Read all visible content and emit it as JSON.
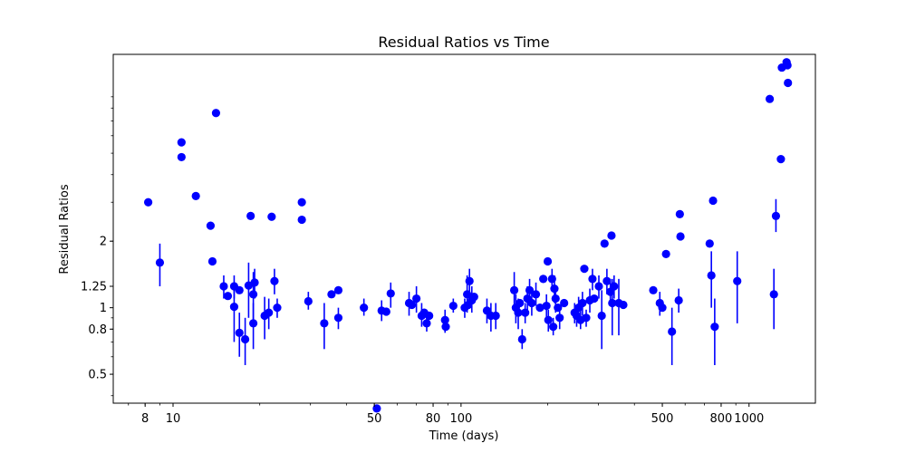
{
  "chart_data": {
    "type": "scatter",
    "title": "Residual Ratios vs Time",
    "xlabel": "Time (days)",
    "ylabel": "Residual Ratios",
    "xscale": "log",
    "yscale": "log",
    "xlim": [
      6.2,
      1700
    ],
    "ylim": [
      0.37,
      14
    ],
    "xticks": [
      {
        "value": 8,
        "label": "8"
      },
      {
        "value": 10,
        "label": "10"
      },
      {
        "value": 50,
        "label": "50"
      },
      {
        "value": 80,
        "label": "80"
      },
      {
        "value": 100,
        "label": "100"
      },
      {
        "value": 500,
        "label": "500"
      },
      {
        "value": 800,
        "label": "800"
      },
      {
        "value": 1000,
        "label": "1000"
      }
    ],
    "yticks": [
      {
        "value": 0.5,
        "label": "0.5"
      },
      {
        "value": 0.8,
        "label": "0.8"
      },
      {
        "value": 1,
        "label": "1"
      },
      {
        "value": 1.25,
        "label": "1.25"
      },
      {
        "value": 2,
        "label": "2"
      }
    ],
    "grid": false,
    "marker_color": "#0000ff",
    "points": [
      {
        "x": 8.2,
        "y": 3.0
      },
      {
        "x": 9.0,
        "y": 1.6,
        "lo": 1.25,
        "hi": 1.95
      },
      {
        "x": 10.7,
        "y": 5.6
      },
      {
        "x": 10.7,
        "y": 4.8
      },
      {
        "x": 12.0,
        "y": 3.2
      },
      {
        "x": 13.5,
        "y": 2.35
      },
      {
        "x": 13.7,
        "y": 1.62
      },
      {
        "x": 14.1,
        "y": 7.6
      },
      {
        "x": 15.0,
        "y": 1.25,
        "lo": 1.1,
        "hi": 1.4
      },
      {
        "x": 15.5,
        "y": 1.13
      },
      {
        "x": 16.3,
        "y": 1.25,
        "lo": 1.1,
        "hi": 1.4
      },
      {
        "x": 16.3,
        "y": 1.01,
        "lo": 0.7,
        "hi": 1.3
      },
      {
        "x": 17.0,
        "y": 0.77,
        "lo": 0.6,
        "hi": 0.95
      },
      {
        "x": 17.0,
        "y": 1.2
      },
      {
        "x": 17.8,
        "y": 0.72,
        "lo": 0.55,
        "hi": 0.9
      },
      {
        "x": 18.3,
        "y": 1.26,
        "lo": 0.9,
        "hi": 1.6
      },
      {
        "x": 18.6,
        "y": 2.6
      },
      {
        "x": 19.0,
        "y": 0.85,
        "lo": 0.65,
        "hi": 1.05
      },
      {
        "x": 19.0,
        "y": 1.15,
        "lo": 0.85,
        "hi": 1.45
      },
      {
        "x": 19.2,
        "y": 1.3,
        "lo": 1.1,
        "hi": 1.5
      },
      {
        "x": 20.8,
        "y": 0.92,
        "lo": 0.72,
        "hi": 1.12
      },
      {
        "x": 21.5,
        "y": 0.95,
        "lo": 0.8,
        "hi": 1.1
      },
      {
        "x": 22.0,
        "y": 2.58
      },
      {
        "x": 22.5,
        "y": 1.32,
        "lo": 1.15,
        "hi": 1.5
      },
      {
        "x": 23.0,
        "y": 1.0,
        "lo": 0.9,
        "hi": 1.1
      },
      {
        "x": 28.0,
        "y": 3.0
      },
      {
        "x": 28.0,
        "y": 2.5
      },
      {
        "x": 29.5,
        "y": 1.07,
        "lo": 0.98,
        "hi": 1.18
      },
      {
        "x": 33.5,
        "y": 0.85,
        "lo": 0.65,
        "hi": 1.05
      },
      {
        "x": 35.5,
        "y": 1.15
      },
      {
        "x": 37.5,
        "y": 1.2
      },
      {
        "x": 37.5,
        "y": 0.9,
        "lo": 0.8,
        "hi": 1.0
      },
      {
        "x": 46.0,
        "y": 1.0,
        "lo": 0.92,
        "hi": 1.1
      },
      {
        "x": 51.0,
        "y": 0.35
      },
      {
        "x": 53.0,
        "y": 0.97,
        "lo": 0.87,
        "hi": 1.08
      },
      {
        "x": 55.0,
        "y": 0.96
      },
      {
        "x": 57.0,
        "y": 1.16,
        "lo": 1.0,
        "hi": 1.3
      },
      {
        "x": 66.0,
        "y": 1.05,
        "lo": 0.92,
        "hi": 1.18
      },
      {
        "x": 67.5,
        "y": 1.03
      },
      {
        "x": 70.0,
        "y": 1.1,
        "lo": 0.95,
        "hi": 1.25
      },
      {
        "x": 73.0,
        "y": 0.92,
        "lo": 0.82,
        "hi": 1.05
      },
      {
        "x": 74.5,
        "y": 0.95
      },
      {
        "x": 76.0,
        "y": 0.85,
        "lo": 0.78,
        "hi": 0.95
      },
      {
        "x": 77.5,
        "y": 0.92
      },
      {
        "x": 88.0,
        "y": 0.88,
        "lo": 0.77,
        "hi": 0.98
      },
      {
        "x": 88.5,
        "y": 0.82
      },
      {
        "x": 94.0,
        "y": 1.02,
        "lo": 0.95,
        "hi": 1.1
      },
      {
        "x": 103.0,
        "y": 1.0,
        "lo": 0.9,
        "hi": 1.1
      },
      {
        "x": 105.0,
        "y": 1.15,
        "lo": 0.95,
        "hi": 1.4
      },
      {
        "x": 106.0,
        "y": 1.03
      },
      {
        "x": 107.0,
        "y": 1.32,
        "lo": 1.15,
        "hi": 1.5
      },
      {
        "x": 109.0,
        "y": 1.08,
        "lo": 0.95,
        "hi": 1.25
      },
      {
        "x": 111.0,
        "y": 1.12
      },
      {
        "x": 123.0,
        "y": 0.97,
        "lo": 0.85,
        "hi": 1.1
      },
      {
        "x": 127.0,
        "y": 0.92,
        "lo": 0.78,
        "hi": 1.05
      },
      {
        "x": 132.0,
        "y": 0.92,
        "lo": 0.8,
        "hi": 1.05
      },
      {
        "x": 153.0,
        "y": 1.2,
        "lo": 1.0,
        "hi": 1.45
      },
      {
        "x": 155.0,
        "y": 1.0,
        "lo": 0.85,
        "hi": 1.15
      },
      {
        "x": 158.0,
        "y": 0.95,
        "lo": 0.8,
        "hi": 1.1
      },
      {
        "x": 160.0,
        "y": 1.05
      },
      {
        "x": 163.0,
        "y": 0.72,
        "lo": 0.65,
        "hi": 0.8
      },
      {
        "x": 167.0,
        "y": 0.95,
        "lo": 0.85,
        "hi": 1.05
      },
      {
        "x": 170.0,
        "y": 1.1,
        "lo": 0.95,
        "hi": 1.25
      },
      {
        "x": 173.0,
        "y": 1.2,
        "lo": 1.05,
        "hi": 1.35
      },
      {
        "x": 176.0,
        "y": 1.05,
        "lo": 0.92,
        "hi": 1.2
      },
      {
        "x": 182.0,
        "y": 1.15,
        "lo": 1.02,
        "hi": 1.3
      },
      {
        "x": 188.0,
        "y": 1.0
      },
      {
        "x": 193.0,
        "y": 1.35
      },
      {
        "x": 198.0,
        "y": 1.02,
        "lo": 0.9,
        "hi": 1.15
      },
      {
        "x": 200.0,
        "y": 1.62
      },
      {
        "x": 201.0,
        "y": 0.88,
        "lo": 0.78,
        "hi": 0.98
      },
      {
        "x": 207.0,
        "y": 1.35,
        "lo": 1.2,
        "hi": 1.5
      },
      {
        "x": 209.0,
        "y": 0.82,
        "lo": 0.75,
        "hi": 0.9
      },
      {
        "x": 211.0,
        "y": 1.22,
        "lo": 1.05,
        "hi": 1.4
      },
      {
        "x": 213.0,
        "y": 1.1,
        "lo": 0.95,
        "hi": 1.25
      },
      {
        "x": 217.0,
        "y": 1.0
      },
      {
        "x": 220.0,
        "y": 0.9,
        "lo": 0.8,
        "hi": 1.0
      },
      {
        "x": 228.0,
        "y": 1.05
      },
      {
        "x": 248.0,
        "y": 0.95,
        "lo": 0.85,
        "hi": 1.05
      },
      {
        "x": 252.0,
        "y": 0.92,
        "lo": 0.82,
        "hi": 1.02
      },
      {
        "x": 256.0,
        "y": 1.0,
        "lo": 0.88,
        "hi": 1.12
      },
      {
        "x": 260.0,
        "y": 0.88,
        "lo": 0.8,
        "hi": 0.97
      },
      {
        "x": 264.0,
        "y": 1.05,
        "lo": 0.92,
        "hi": 1.18
      },
      {
        "x": 268.0,
        "y": 1.5
      },
      {
        "x": 272.0,
        "y": 0.9,
        "lo": 0.82,
        "hi": 0.98
      },
      {
        "x": 280.0,
        "y": 1.08,
        "lo": 0.95,
        "hi": 1.22
      },
      {
        "x": 286.0,
        "y": 1.35,
        "lo": 1.2,
        "hi": 1.5
      },
      {
        "x": 290.0,
        "y": 1.1
      },
      {
        "x": 301.0,
        "y": 1.25,
        "lo": 1.1,
        "hi": 1.4
      },
      {
        "x": 308.0,
        "y": 0.92,
        "lo": 0.65,
        "hi": 1.2
      },
      {
        "x": 315.0,
        "y": 1.95
      },
      {
        "x": 321.0,
        "y": 1.32,
        "lo": 1.15,
        "hi": 1.5
      },
      {
        "x": 330.0,
        "y": 1.18,
        "lo": 1.02,
        "hi": 1.35
      },
      {
        "x": 333.0,
        "y": 2.12
      },
      {
        "x": 335.0,
        "y": 1.05,
        "lo": 0.75,
        "hi": 1.35
      },
      {
        "x": 340.0,
        "y": 1.25,
        "lo": 1.1,
        "hi": 1.4
      },
      {
        "x": 353.0,
        "y": 1.05,
        "lo": 0.75,
        "hi": 1.35
      },
      {
        "x": 366.0,
        "y": 1.03
      },
      {
        "x": 465.0,
        "y": 1.2
      },
      {
        "x": 490.0,
        "y": 1.05,
        "lo": 0.92,
        "hi": 1.18
      },
      {
        "x": 500.0,
        "y": 1.0
      },
      {
        "x": 515.0,
        "y": 1.75
      },
      {
        "x": 540.0,
        "y": 0.78,
        "lo": 0.55,
        "hi": 1.0
      },
      {
        "x": 570.0,
        "y": 1.08,
        "lo": 0.95,
        "hi": 1.22
      },
      {
        "x": 575.0,
        "y": 2.65
      },
      {
        "x": 578.0,
        "y": 2.1
      },
      {
        "x": 730.0,
        "y": 1.95
      },
      {
        "x": 740.0,
        "y": 1.4,
        "lo": 1.0,
        "hi": 1.8
      },
      {
        "x": 750.0,
        "y": 3.05
      },
      {
        "x": 760.0,
        "y": 0.82,
        "lo": 0.55,
        "hi": 1.1
      },
      {
        "x": 910.0,
        "y": 1.32,
        "lo": 0.85,
        "hi": 1.8
      },
      {
        "x": 1180.0,
        "y": 8.8
      },
      {
        "x": 1220.0,
        "y": 1.15,
        "lo": 0.8,
        "hi": 1.5
      },
      {
        "x": 1240.0,
        "y": 2.6,
        "lo": 2.2,
        "hi": 3.1
      },
      {
        "x": 1290.0,
        "y": 4.7
      },
      {
        "x": 1300.0,
        "y": 12.2
      },
      {
        "x": 1350.0,
        "y": 12.9
      },
      {
        "x": 1360.0,
        "y": 12.5
      },
      {
        "x": 1365.0,
        "y": 10.4
      }
    ]
  }
}
